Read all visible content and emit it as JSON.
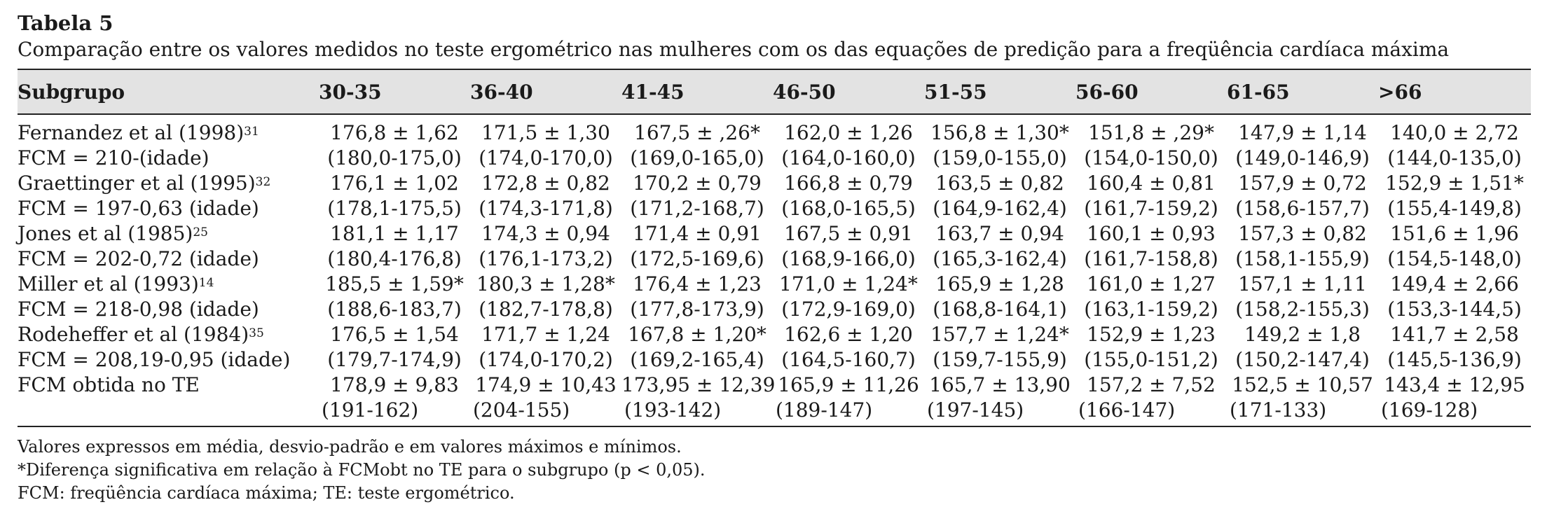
{
  "title": "Tabela 5",
  "caption": "Comparação entre os valores medidos no teste ergométrico nas mulheres com os das equações de predição para a freqüência cardíaca máxima",
  "header": [
    "Subgrupo",
    "30-35",
    "36-40",
    "41-45",
    "46-50",
    "51-55",
    "56-60",
    "61-65",
    ">66"
  ],
  "rows": [
    {
      "label": "Fernandez et al (1998)",
      "ref": "31",
      "cells": [
        "176,8 ± 1,62",
        "171,5 ± 1,30",
        "167,5 ± ,26*",
        "162,0 ± 1,26",
        "156,8 ± 1,30*",
        "151,8 ± ,29*",
        "147,9 ± 1,14",
        "140,0 ± 2,72"
      ]
    },
    {
      "label": "FCM = 210-(idade)",
      "ref": "",
      "cells": [
        "(180,0-175,0)",
        "(174,0-170,0)",
        "(169,0-165,0)",
        "(164,0-160,0)",
        "(159,0-155,0)",
        "(154,0-150,0)",
        "(149,0-146,9)",
        "(144,0-135,0)"
      ]
    },
    {
      "label": "Graettinger et al (1995)",
      "ref": "32",
      "cells": [
        "176,1 ± 1,02",
        "172,8 ± 0,82",
        "170,2 ± 0,79",
        "166,8 ± 0,79",
        "163,5 ± 0,82",
        "160,4 ± 0,81",
        "157,9 ± 0,72",
        "152,9 ± 1,51*"
      ]
    },
    {
      "label": "FCM = 197-0,63 (idade)",
      "ref": "",
      "cells": [
        "(178,1-175,5)",
        "(174,3-171,8)",
        "(171,2-168,7)",
        "(168,0-165,5)",
        "(164,9-162,4)",
        "(161,7-159,2)",
        "(158,6-157,7)",
        "(155,4-149,8)"
      ]
    },
    {
      "label": "Jones et al (1985)",
      "ref": "25",
      "cells": [
        "181,1 ± 1,17",
        "174,3 ± 0,94",
        "171,4 ± 0,91",
        "167,5 ± 0,91",
        "163,7 ± 0,94",
        "160,1 ± 0,93",
        "157,3 ± 0,82",
        "151,6 ± 1,96"
      ]
    },
    {
      "label": "FCM = 202-0,72 (idade)",
      "ref": "",
      "cells": [
        "(180,4-176,8)",
        "(176,1-173,2)",
        "(172,5-169,6)",
        "(168,9-166,0)",
        "(165,3-162,4)",
        "(161,7-158,8)",
        "(158,1-155,9)",
        "(154,5-148,0)"
      ]
    },
    {
      "label": "Miller et al (1993)",
      "ref": "14",
      "cells": [
        "185,5 ± 1,59*",
        "180,3 ± 1,28*",
        "176,4 ± 1,23",
        "171,0 ± 1,24*",
        "165,9 ± 1,28",
        "161,0 ± 1,27",
        "157,1 ± 1,11",
        "149,4 ± 2,66"
      ]
    },
    {
      "label": "FCM = 218-0,98 (idade)",
      "ref": "",
      "cells": [
        "(188,6-183,7)",
        "(182,7-178,8)",
        "(177,8-173,9)",
        "(172,9-169,0)",
        "(168,8-164,1)",
        "(163,1-159,2)",
        "(158,2-155,3)",
        "(153,3-144,5)"
      ]
    },
    {
      "label": "Rodeheffer et al (1984)",
      "ref": "35",
      "cells": [
        "176,5 ± 1,54",
        "171,7 ± 1,24",
        "167,8 ± 1,20*",
        "162,6 ± 1,20",
        "157,7 ± 1,24*",
        "152,9 ± 1,23",
        "149,2 ± 1,8",
        "141,7 ± 2,58"
      ]
    },
    {
      "label": "FCM = 208,19-0,95 (idade)",
      "ref": "",
      "cells": [
        "(179,7-174,9)",
        "(174,0-170,2)",
        "(169,2-165,4)",
        "(164,5-160,7)",
        "(159,7-155,9)",
        "(155,0-151,2)",
        "(150,2-147,4)",
        "(145,5-136,9)"
      ]
    },
    {
      "label": "FCM obtida no TE",
      "ref": "",
      "cells": [
        "178,9 ± 9,83",
        "174,9 ± 10,43",
        "173,95 ± 12,39",
        "165,9 ± 11,26",
        "165,7 ± 13,90",
        "157,2 ± 7,52",
        "152,5 ± 10,57",
        "143,4 ± 12,95"
      ]
    },
    {
      "label": "",
      "ref": "",
      "cells": [
        "(191-162)",
        "(204-155)",
        "(193-142)",
        "(189-147)",
        "(197-145)",
        "(166-147)",
        "(171-133)",
        "(169-128)"
      ]
    }
  ],
  "notes": [
    "Valores expressos em média, desvio-padrão e em valores máximos e mínimos.",
    "*Diferença significativa em relação à FCMobt no TE para o subgrupo (p < 0,05).",
    "FCM: freqüência cardíaca máxima; TE: teste ergométrico."
  ]
}
